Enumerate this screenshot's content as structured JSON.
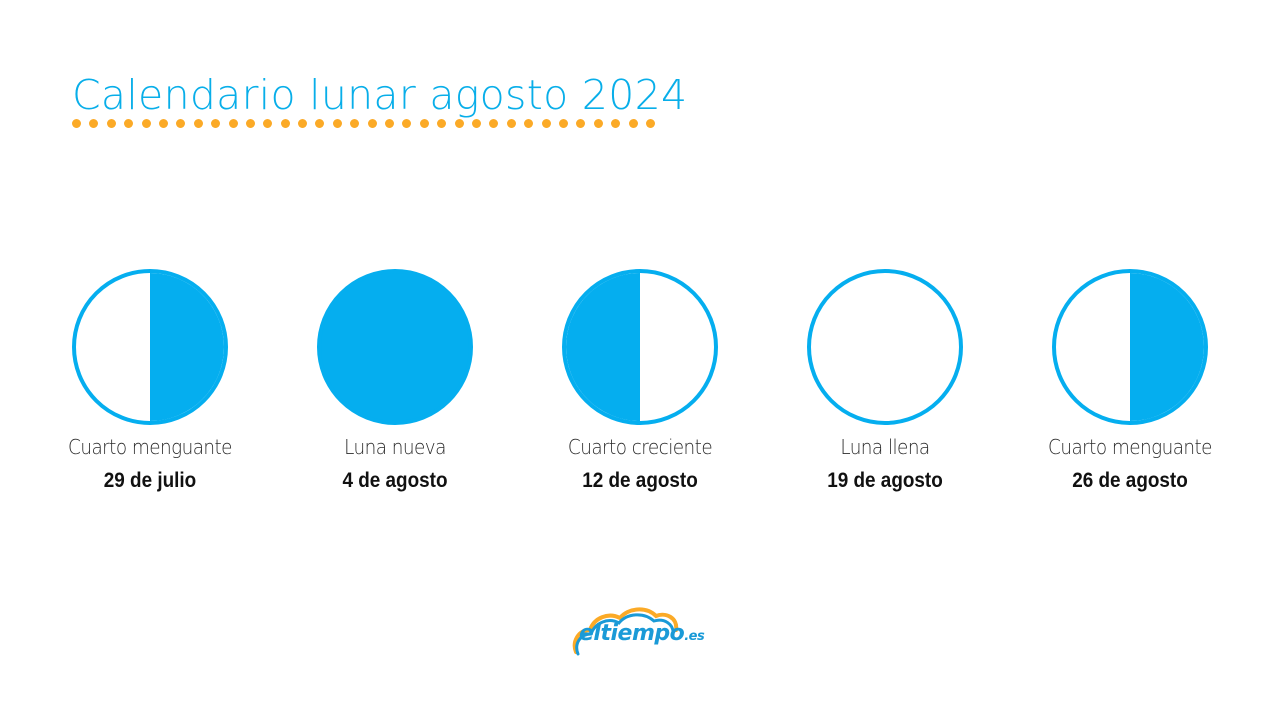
{
  "header": {
    "title": "Calendario lunar agosto 2024",
    "dot_count": 34
  },
  "colors": {
    "accent_blue": "#05aeef",
    "title_blue": "#08aee9",
    "dot_orange": "#fbaa27",
    "logo_blue": "#1a9ad7"
  },
  "phases": [
    {
      "name": "Cuarto menguante",
      "date": "29 de julio",
      "icon": "last-quarter-moon-icon",
      "fill": "right"
    },
    {
      "name": "Luna nueva",
      "date": "4 de agosto",
      "icon": "new-moon-icon",
      "fill": "full"
    },
    {
      "name": "Cuarto creciente",
      "date": "12 de agosto",
      "icon": "first-quarter-moon-icon",
      "fill": "left"
    },
    {
      "name": "Luna llena",
      "date": "19 de agosto",
      "icon": "full-moon-icon",
      "fill": "none"
    },
    {
      "name": "Cuarto menguante",
      "date": "26 de agosto",
      "icon": "last-quarter-moon-icon",
      "fill": "right"
    }
  ],
  "logo": {
    "brand": "eltiempo",
    "suffix": ".es"
  }
}
